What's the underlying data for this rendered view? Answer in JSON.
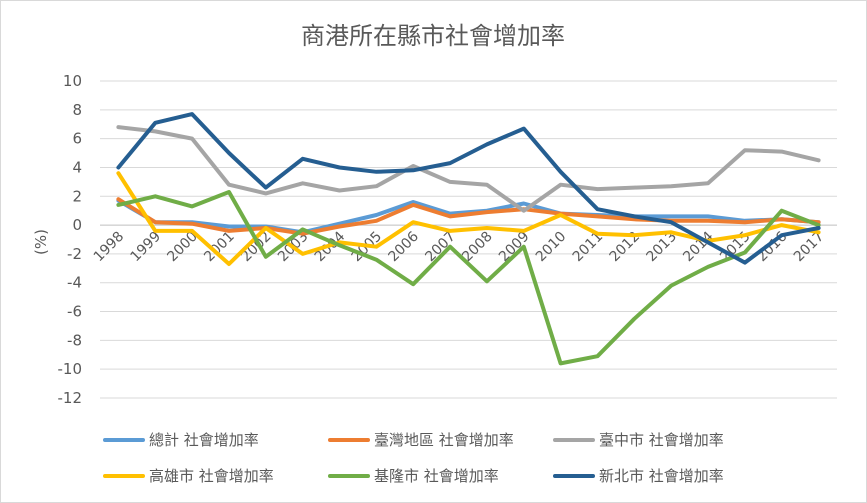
{
  "chart_data": {
    "type": "line",
    "title": "商港所在縣市社會增加率",
    "ylabel": "(%)",
    "xlabel": "",
    "ylim": [
      -12,
      10
    ],
    "yticks": [
      10,
      8,
      6,
      4,
      2,
      0,
      -2,
      -4,
      -6,
      -8,
      -10,
      -12
    ],
    "grid": "horizontal",
    "legend_position": "bottom",
    "categories": [
      "1998",
      "1999",
      "2000",
      "2001",
      "2002",
      "2003",
      "2004",
      "2005",
      "2006",
      "2007",
      "2008",
      "2009",
      "2010",
      "2011",
      "2012",
      "2013",
      "2014",
      "2015",
      "2016",
      "2017"
    ],
    "series": [
      {
        "name": "總計 社會增加率",
        "color": "#5b9bd5",
        "values": [
          1.7,
          0.2,
          0.2,
          -0.1,
          -0.1,
          -0.5,
          0.1,
          0.7,
          1.6,
          0.8,
          1.0,
          1.5,
          0.8,
          0.7,
          0.6,
          0.6,
          0.6,
          0.3,
          0.4,
          0.2
        ]
      },
      {
        "name": "臺灣地區 社會增加率",
        "color": "#ed7d31",
        "values": [
          1.8,
          0.2,
          0.1,
          -0.4,
          -0.2,
          -0.6,
          -0.1,
          0.3,
          1.4,
          0.6,
          0.9,
          1.1,
          0.8,
          0.6,
          0.4,
          0.3,
          0.3,
          0.2,
          0.4,
          0.2
        ]
      },
      {
        "name": "臺中市 社會增加率",
        "color": "#a5a5a5",
        "values": [
          6.8,
          6.5,
          6.0,
          2.8,
          2.2,
          2.9,
          2.4,
          2.7,
          4.1,
          3.0,
          2.8,
          1.0,
          2.8,
          2.5,
          2.6,
          2.7,
          2.9,
          5.2,
          5.1,
          4.5
        ]
      },
      {
        "name": "高雄市 社會增加率",
        "color": "#ffc000",
        "values": [
          3.6,
          -0.4,
          -0.4,
          -2.7,
          -0.2,
          -2.0,
          -1.2,
          -1.5,
          0.2,
          -0.4,
          -0.2,
          -0.4,
          0.7,
          -0.6,
          -0.7,
          -0.5,
          -1.1,
          -0.7,
          0.0,
          -0.5
        ]
      },
      {
        "name": "基隆市 社會增加率",
        "color": "#70ad47",
        "values": [
          1.4,
          2.0,
          1.3,
          2.3,
          -2.2,
          -0.3,
          -1.4,
          -2.4,
          -4.1,
          -1.5,
          -3.9,
          -1.5,
          -9.6,
          -9.1,
          -6.5,
          -4.2,
          -2.9,
          -1.9,
          1.0,
          0.0
        ]
      },
      {
        "name": "新北市 社會增加率",
        "color": "#255e91",
        "values": [
          4.0,
          7.1,
          7.7,
          5.0,
          2.6,
          4.6,
          4.0,
          3.7,
          3.8,
          4.3,
          5.6,
          6.7,
          3.7,
          1.1,
          0.6,
          0.2,
          -1.2,
          -2.6,
          -0.7,
          -0.2
        ]
      }
    ]
  }
}
